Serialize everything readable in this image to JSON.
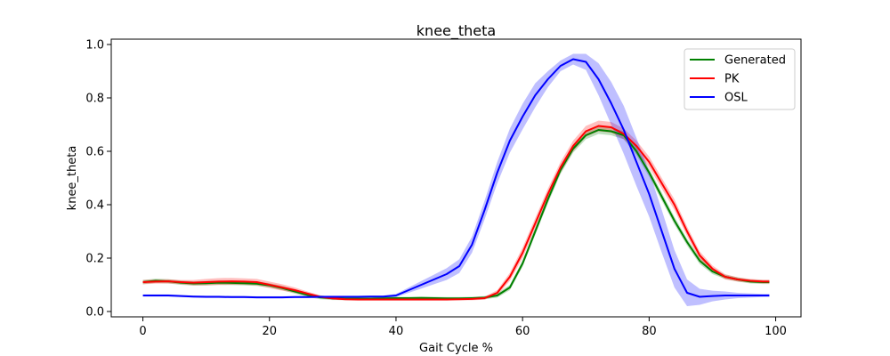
{
  "chart_data": {
    "type": "line",
    "title": "knee_theta",
    "xlabel": "Gait Cycle %",
    "ylabel": "knee_theta",
    "xlim": [
      -5,
      104
    ],
    "ylim": [
      -0.02,
      1.02
    ],
    "xticks": [
      0,
      20,
      40,
      60,
      80,
      100
    ],
    "yticks": [
      0.0,
      0.2,
      0.4,
      0.6,
      0.8,
      1.0
    ],
    "xtick_labels": [
      "0",
      "20",
      "40",
      "60",
      "80",
      "100"
    ],
    "ytick_labels": [
      "0.0",
      "0.2",
      "0.4",
      "0.6",
      "0.8",
      "1.0"
    ],
    "grid": false,
    "legend_position": "top-right",
    "x": [
      0,
      2,
      4,
      6,
      8,
      10,
      12,
      14,
      16,
      18,
      20,
      22,
      24,
      26,
      28,
      30,
      32,
      34,
      36,
      38,
      40,
      42,
      44,
      46,
      48,
      50,
      52,
      54,
      56,
      58,
      60,
      62,
      64,
      66,
      68,
      70,
      72,
      74,
      76,
      78,
      80,
      82,
      84,
      86,
      88,
      90,
      92,
      94,
      96,
      98,
      99
    ],
    "series": [
      {
        "name": "Generated",
        "color": "#008000",
        "values": [
          0.11,
          0.115,
          0.113,
          0.108,
          0.105,
          0.106,
          0.108,
          0.107,
          0.106,
          0.104,
          0.098,
          0.088,
          0.075,
          0.062,
          0.053,
          0.049,
          0.048,
          0.048,
          0.048,
          0.049,
          0.05,
          0.05,
          0.051,
          0.05,
          0.049,
          0.049,
          0.05,
          0.052,
          0.06,
          0.09,
          0.18,
          0.3,
          0.42,
          0.53,
          0.61,
          0.66,
          0.68,
          0.675,
          0.66,
          0.6,
          0.52,
          0.43,
          0.34,
          0.26,
          0.19,
          0.15,
          0.13,
          0.12,
          0.112,
          0.11,
          0.11
        ],
        "band": [
          0.008,
          0.008,
          0.008,
          0.008,
          0.008,
          0.008,
          0.008,
          0.008,
          0.008,
          0.008,
          0.008,
          0.008,
          0.008,
          0.008,
          0.007,
          0.006,
          0.005,
          0.005,
          0.005,
          0.005,
          0.005,
          0.005,
          0.005,
          0.005,
          0.005,
          0.005,
          0.005,
          0.006,
          0.008,
          0.01,
          0.012,
          0.013,
          0.015,
          0.015,
          0.015,
          0.015,
          0.015,
          0.015,
          0.015,
          0.015,
          0.015,
          0.015,
          0.014,
          0.013,
          0.012,
          0.01,
          0.008,
          0.008,
          0.007,
          0.007,
          0.007
        ]
      },
      {
        "name": "PK",
        "color": "#ff0000",
        "values": [
          0.11,
          0.112,
          0.113,
          0.11,
          0.108,
          0.11,
          0.112,
          0.113,
          0.112,
          0.11,
          0.1,
          0.09,
          0.08,
          0.067,
          0.055,
          0.049,
          0.046,
          0.045,
          0.045,
          0.045,
          0.045,
          0.045,
          0.045,
          0.045,
          0.045,
          0.046,
          0.047,
          0.05,
          0.07,
          0.13,
          0.22,
          0.33,
          0.44,
          0.54,
          0.62,
          0.675,
          0.695,
          0.69,
          0.665,
          0.62,
          0.56,
          0.48,
          0.4,
          0.3,
          0.21,
          0.16,
          0.13,
          0.12,
          0.115,
          0.112,
          0.112
        ],
        "band": [
          0.008,
          0.008,
          0.008,
          0.008,
          0.01,
          0.012,
          0.013,
          0.013,
          0.012,
          0.012,
          0.012,
          0.012,
          0.01,
          0.008,
          0.006,
          0.005,
          0.004,
          0.004,
          0.004,
          0.004,
          0.004,
          0.004,
          0.004,
          0.004,
          0.004,
          0.004,
          0.005,
          0.006,
          0.01,
          0.015,
          0.02,
          0.02,
          0.02,
          0.02,
          0.02,
          0.02,
          0.02,
          0.02,
          0.02,
          0.02,
          0.02,
          0.02,
          0.02,
          0.018,
          0.015,
          0.012,
          0.01,
          0.008,
          0.007,
          0.007,
          0.007
        ]
      },
      {
        "name": "OSL",
        "color": "#0000ff",
        "values": [
          0.06,
          0.06,
          0.06,
          0.058,
          0.056,
          0.055,
          0.055,
          0.054,
          0.054,
          0.053,
          0.053,
          0.053,
          0.054,
          0.054,
          0.055,
          0.055,
          0.055,
          0.055,
          0.056,
          0.056,
          0.06,
          0.08,
          0.1,
          0.12,
          0.14,
          0.17,
          0.25,
          0.38,
          0.52,
          0.64,
          0.73,
          0.81,
          0.87,
          0.92,
          0.945,
          0.935,
          0.87,
          0.78,
          0.68,
          0.56,
          0.44,
          0.3,
          0.16,
          0.07,
          0.055,
          0.058,
          0.06,
          0.06,
          0.06,
          0.06,
          0.06
        ],
        "band": [
          0.004,
          0.004,
          0.004,
          0.004,
          0.004,
          0.004,
          0.004,
          0.004,
          0.004,
          0.004,
          0.004,
          0.004,
          0.004,
          0.004,
          0.004,
          0.004,
          0.004,
          0.004,
          0.004,
          0.004,
          0.006,
          0.01,
          0.014,
          0.018,
          0.022,
          0.026,
          0.03,
          0.035,
          0.04,
          0.045,
          0.048,
          0.045,
          0.03,
          0.02,
          0.02,
          0.03,
          0.06,
          0.08,
          0.09,
          0.09,
          0.085,
          0.08,
          0.07,
          0.05,
          0.03,
          0.02,
          0.015,
          0.01,
          0.008,
          0.006,
          0.006
        ]
      }
    ]
  }
}
